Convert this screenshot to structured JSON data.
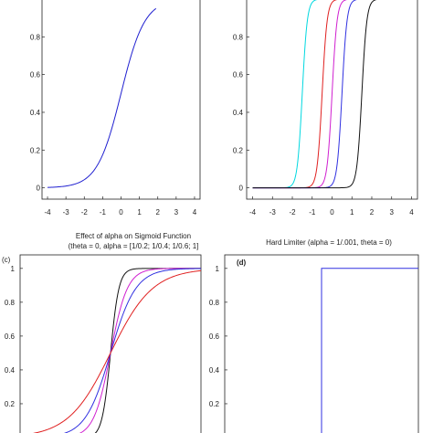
{
  "chart_data": [
    {
      "panel": "a",
      "panel_label": "",
      "type": "line",
      "title": "",
      "xlabel": "",
      "ylabel": "",
      "xlim": [
        -4.3,
        4.3
      ],
      "ylim": [
        -0.06,
        1.0
      ],
      "xticks": [
        "-4",
        "-3",
        "-2",
        "-1",
        "0",
        "1",
        "2",
        "3",
        "4"
      ],
      "yticks": [
        "0",
        "0.2",
        "0.4",
        "0.6",
        "0.8"
      ],
      "grid": false,
      "series": [
        {
          "color": "#2020d0",
          "alpha": 1,
          "theta": 0,
          "x": [
            -4,
            -3.5,
            -3,
            -2.5,
            -2,
            -1.5,
            -1,
            -0.5,
            0,
            0.5,
            1,
            1.5,
            2
          ],
          "y": [
            0.0,
            0.0,
            0.0,
            0.01,
            0.04,
            0.11,
            0.25,
            0.39,
            0.5,
            0.62,
            0.75,
            0.89,
            0.97
          ]
        }
      ]
    },
    {
      "panel": "b",
      "panel_label": "",
      "type": "line",
      "title": "",
      "xlabel": "",
      "ylabel": "",
      "xlim": [
        -4.3,
        4.3
      ],
      "ylim": [
        -0.06,
        1.0
      ],
      "xticks": [
        "-4",
        "-3",
        "-2",
        "-1",
        "0",
        "1",
        "2",
        "3",
        "4"
      ],
      "yticks": [
        "0",
        "0.2",
        "0.4",
        "0.6",
        "0.8"
      ],
      "grid": false,
      "series": [
        {
          "color": "#00d8e0",
          "theta": -1.5,
          "slope": 8
        },
        {
          "color": "#e02020",
          "theta": -0.5,
          "slope": 8
        },
        {
          "color": "#d020d0",
          "theta": 0.0,
          "slope": 8
        },
        {
          "color": "#3030e0",
          "theta": 0.5,
          "slope": 8
        },
        {
          "color": "#111111",
          "theta": 1.5,
          "slope": 8
        }
      ]
    },
    {
      "panel": "c",
      "panel_label": "(c)",
      "type": "line",
      "title": "Effect of alpha on Sigmoid Function",
      "subtitle": "(theta = 0, alpha = [1/0.2; 1/0.4; 1/0.6; 1]",
      "xlabel": "",
      "ylabel": "",
      "xlim": [
        -4.3,
        4.3
      ],
      "ylim": [
        0.0,
        1.08
      ],
      "yticks": [
        "1",
        "0.8",
        "0.6",
        "0.4",
        "0.2"
      ],
      "grid": false,
      "series": [
        {
          "color": "#111111",
          "alpha": 5
        },
        {
          "color": "#d020d0",
          "alpha": 2.5
        },
        {
          "color": "#3030e0",
          "alpha": 1.667
        },
        {
          "color": "#e02020",
          "alpha": 1
        }
      ]
    },
    {
      "panel": "d",
      "panel_label": "(d)",
      "type": "line",
      "title": "Hard Limiter  (alpha = 1/.001, theta = 0)",
      "xlabel": "",
      "ylabel": "",
      "xlim": [
        -4.3,
        4.3
      ],
      "ylim": [
        0.0,
        1.08
      ],
      "yticks": [
        "1",
        "0.8",
        "0.6",
        "0.4",
        "0.2"
      ],
      "grid": false,
      "series": [
        {
          "color": "#3030e0",
          "x": [
            -4.3,
            0,
            0,
            4.3
          ],
          "y": [
            0,
            0,
            1,
            1
          ]
        }
      ]
    }
  ]
}
